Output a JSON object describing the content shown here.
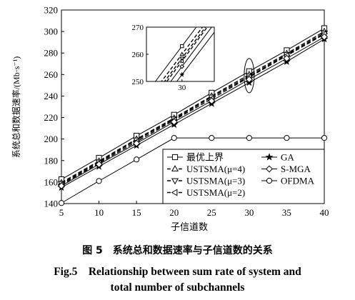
{
  "chart_data": {
    "type": "line",
    "xlabel": "子信道数",
    "ylabel": "系统总和数据速率/(Mb·s⁻¹)",
    "x": [
      5,
      10,
      15,
      20,
      25,
      30,
      35,
      40
    ],
    "xlim": [
      5,
      40
    ],
    "ylim": [
      140,
      320
    ],
    "xticks": [
      "5",
      "10",
      "15",
      "20",
      "25",
      "30",
      "35",
      "40"
    ],
    "yticks": [
      "140",
      "160",
      "180",
      "200",
      "220",
      "240",
      "260",
      "280",
      "300",
      "320"
    ],
    "grid": false,
    "legend_position": "bottom-right",
    "series": [
      {
        "name": "最优上界",
        "marker": "square",
        "dash": "solid",
        "values": [
          162.5,
          182.5,
          203,
          222.5,
          243,
          263,
          282.5,
          303
        ]
      },
      {
        "name": "USTSMA(μ=4)",
        "marker": "triangle-up",
        "dash": "dashed",
        "values": [
          159.5,
          179.5,
          200,
          219.5,
          240,
          260,
          279.5,
          300
        ]
      },
      {
        "name": "USTSMA(μ=3)",
        "marker": "triangle-down",
        "dash": "dashed",
        "values": [
          158.5,
          178.5,
          199,
          218.5,
          239,
          258.5,
          278.5,
          298.5
        ]
      },
      {
        "name": "USTSMA(μ=2)",
        "marker": "triangle-left",
        "dash": "dashed",
        "values": [
          157.5,
          177.5,
          197.5,
          217.5,
          237.5,
          257.5,
          277.5,
          297.5
        ]
      },
      {
        "name": "GA",
        "marker": "star",
        "dash": "solid",
        "values": [
          155,
          174.5,
          194,
          213.5,
          233,
          252.5,
          272,
          293
        ]
      },
      {
        "name": "S-MGA",
        "marker": "diamond",
        "dash": "solid",
        "values": [
          156.5,
          176.5,
          196,
          216,
          235.5,
          255.5,
          275,
          295
        ]
      },
      {
        "name": "OFDMA",
        "marker": "circle",
        "dash": "solid",
        "values": [
          140.5,
          161,
          181,
          201,
          201,
          201,
          201,
          201
        ]
      }
    ],
    "inset": {
      "xtick": "30",
      "yticks": [
        "250",
        "260",
        "270"
      ],
      "ylim": [
        250,
        270
      ]
    }
  },
  "caption": {
    "cn": "图 5　系统总和数据速率与子信道数的关系",
    "en_line1": "Fig.5　Relationship between sum rate of system and",
    "en_line2": "total number of subchannels"
  }
}
